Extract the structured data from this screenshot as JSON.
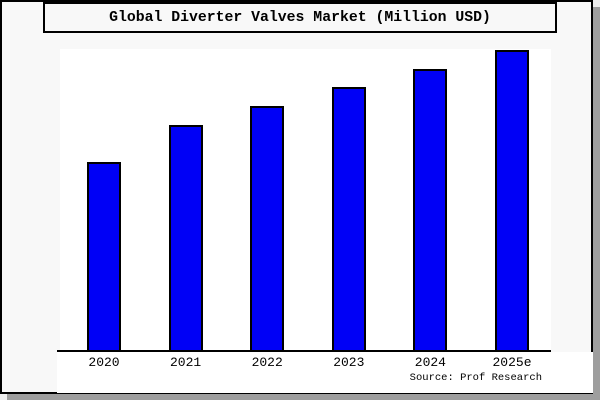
{
  "title": "Global Diverter Valves Market (Million USD)",
  "source": "Source: Prof Research",
  "colors": {
    "bar_fill": "#0000f6",
    "bar_border": "#000000",
    "box_background": "#f8f8f8",
    "canvas_background": "#efefef",
    "plot_background": "#ffffff",
    "shadow": "#9e9e9e",
    "axis": "#000000",
    "text": "#000000"
  },
  "chart_data": {
    "type": "bar",
    "title": "Global Diverter Valves Market (Million USD)",
    "categories": [
      "2020",
      "2021",
      "2022",
      "2023",
      "2024",
      "2025e"
    ],
    "values": [
      188,
      225,
      244,
      263,
      281,
      300
    ],
    "xlabel": "",
    "ylabel": "",
    "ylim": [
      0,
      301
    ],
    "y_axis_visible": false,
    "grid": false,
    "legend": null,
    "annotation": "Source: Prof Research"
  }
}
